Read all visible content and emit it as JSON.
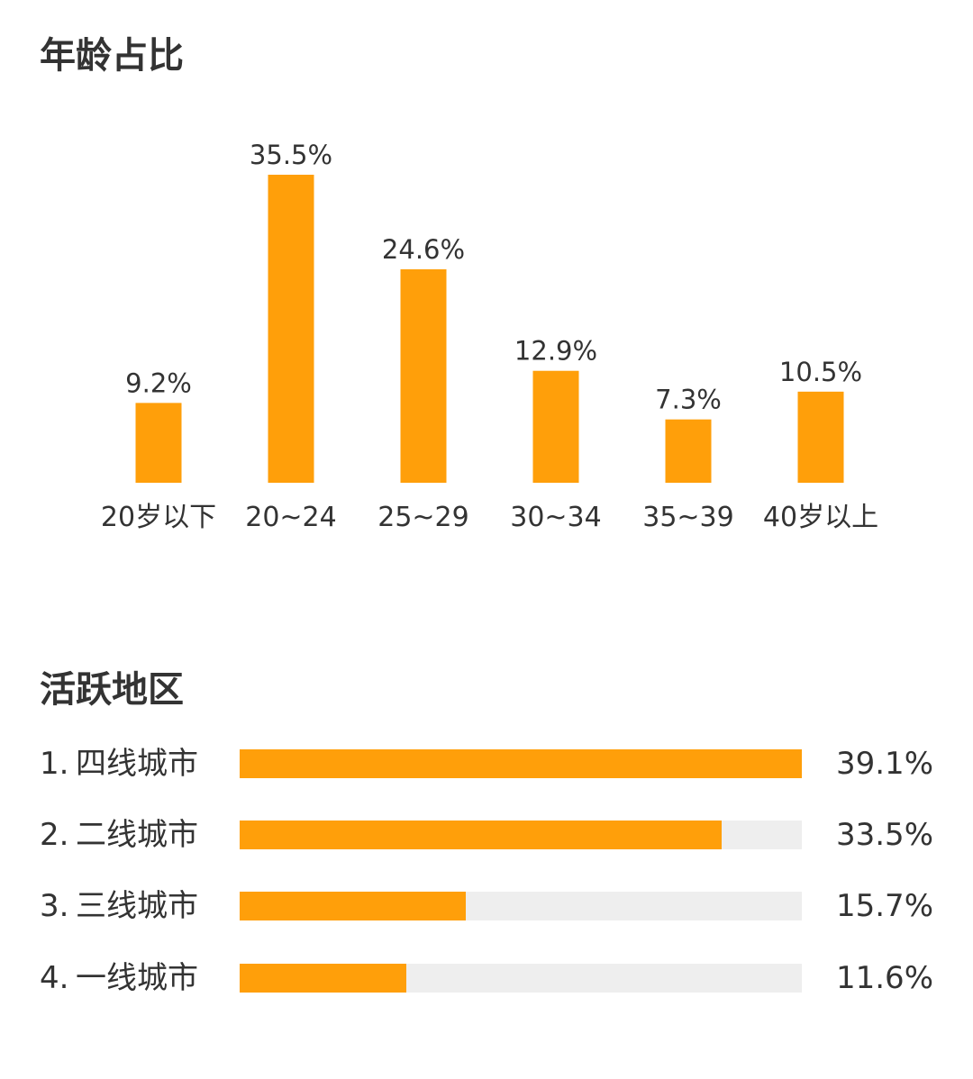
{
  "colors": {
    "bar": "#FF9F0A",
    "track": "#EEEEEE",
    "text": "#333333"
  },
  "age_section": {
    "title": "年龄占比"
  },
  "region_section": {
    "title": "活跃地区"
  },
  "chart_data": [
    {
      "type": "bar",
      "title": "年龄占比",
      "categories": [
        "20岁以下",
        "20~24",
        "25~29",
        "30~34",
        "35~39",
        "40岁以上"
      ],
      "values": [
        9.2,
        35.5,
        24.6,
        12.9,
        7.3,
        10.5
      ],
      "value_labels": [
        "9.2%",
        "35.5%",
        "24.6%",
        "12.9%",
        "7.3%",
        "10.5%"
      ],
      "ylim": [
        0,
        35.5
      ],
      "grid": false,
      "legend": "none"
    },
    {
      "type": "bar",
      "orientation": "horizontal",
      "title": "活跃地区",
      "categories": [
        "四线城市",
        "二线城市",
        "三线城市",
        "一线城市"
      ],
      "ranks": [
        "1.",
        "2.",
        "3.",
        "4."
      ],
      "values": [
        39.1,
        33.5,
        15.7,
        11.6
      ],
      "value_labels": [
        "39.1%",
        "33.5%",
        "15.7%",
        "11.6%"
      ],
      "xlim": [
        0,
        39.1
      ],
      "grid": false,
      "legend": "none"
    }
  ]
}
